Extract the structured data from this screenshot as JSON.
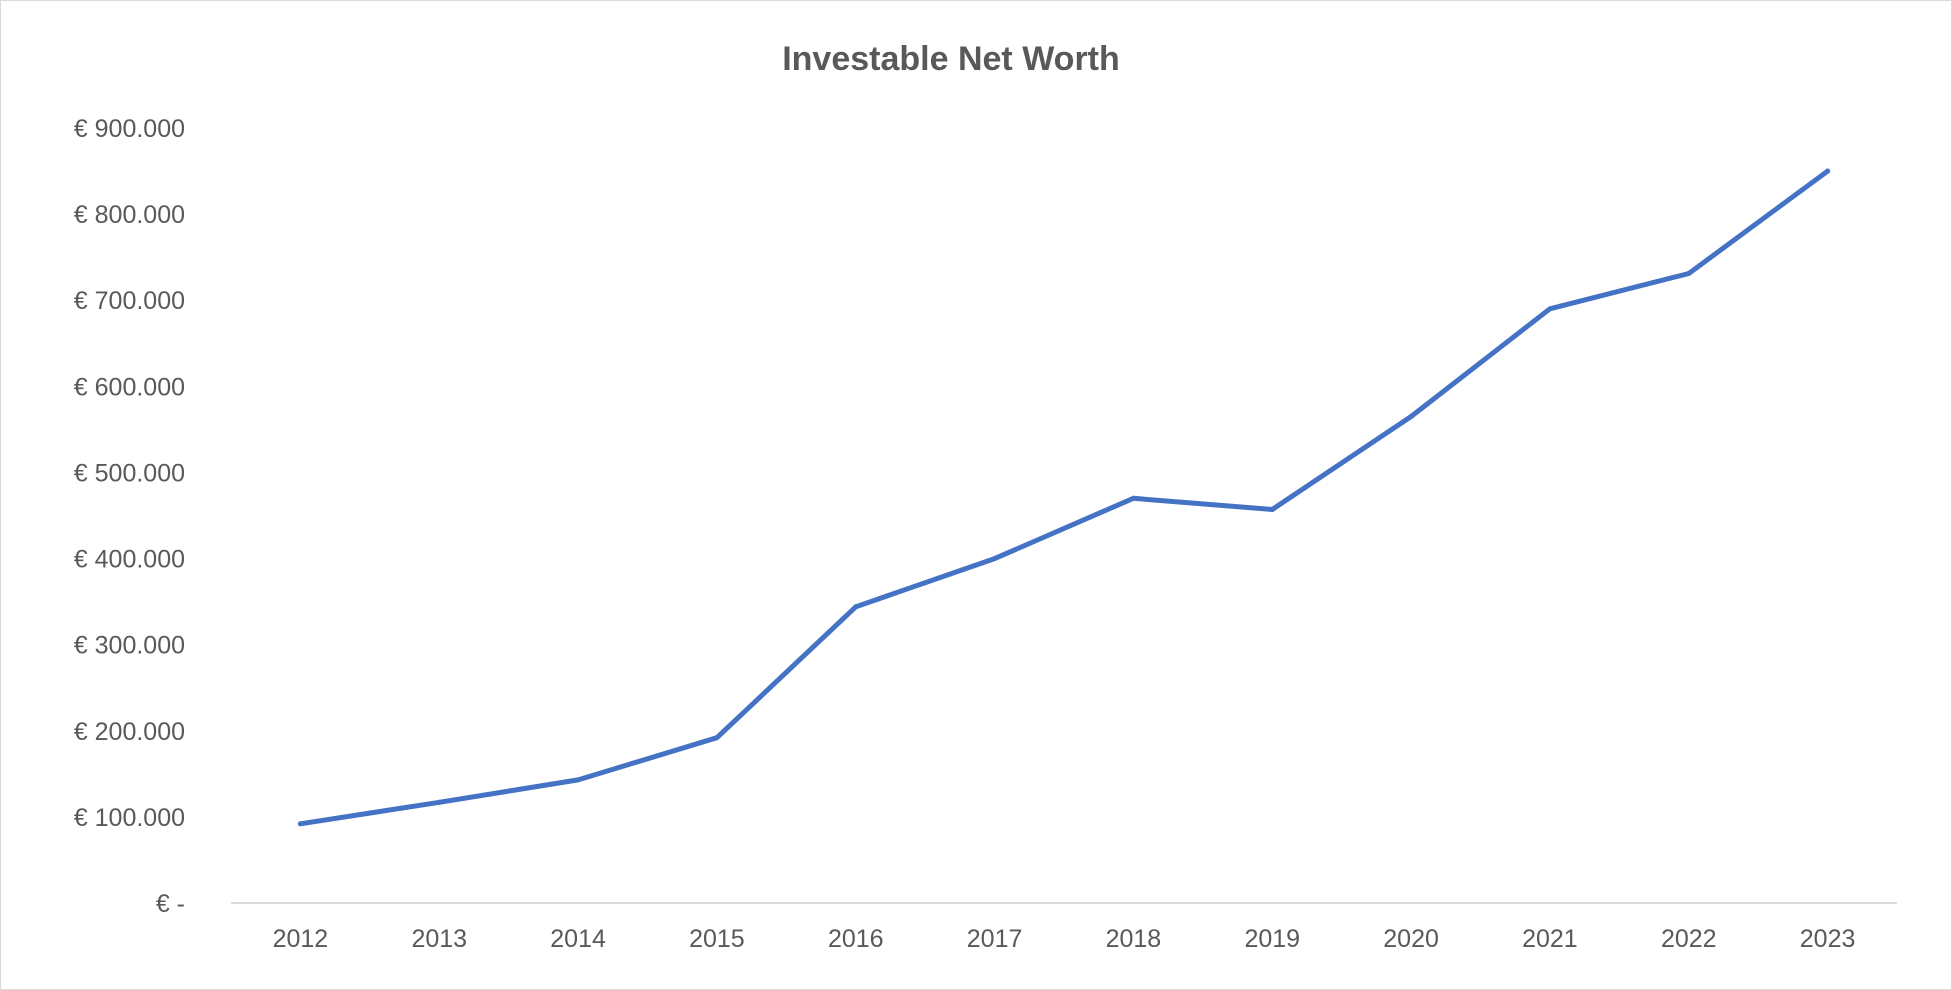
{
  "chart_data": {
    "type": "line",
    "title": "Investable Net Worth",
    "xlabel": "",
    "ylabel": "",
    "categories": [
      "2012",
      "2013",
      "2014",
      "2015",
      "2016",
      "2017",
      "2018",
      "2019",
      "2020",
      "2021",
      "2022",
      "2023"
    ],
    "series": [
      {
        "values": [
          92000,
          117000,
          143000,
          192000,
          344000,
          400000,
          470000,
          457000,
          565000,
          690000,
          731000,
          850000
        ],
        "color": "#4472c4"
      }
    ],
    "ylim": [
      0,
      900000
    ],
    "yticks": [
      0,
      100000,
      200000,
      300000,
      400000,
      500000,
      600000,
      700000,
      800000,
      900000
    ],
    "ytick_labels": [
      "€ -",
      "€ 100.000",
      "€ 200.000",
      "€ 300.000",
      "€ 400.000",
      "€ 500.000",
      "€ 600.000",
      "€ 700.000",
      "€ 800.000",
      "€ 900.000"
    ],
    "grid": false,
    "legend": "none",
    "axis_color": "#d9d9d9",
    "text_color": "#595959"
  }
}
